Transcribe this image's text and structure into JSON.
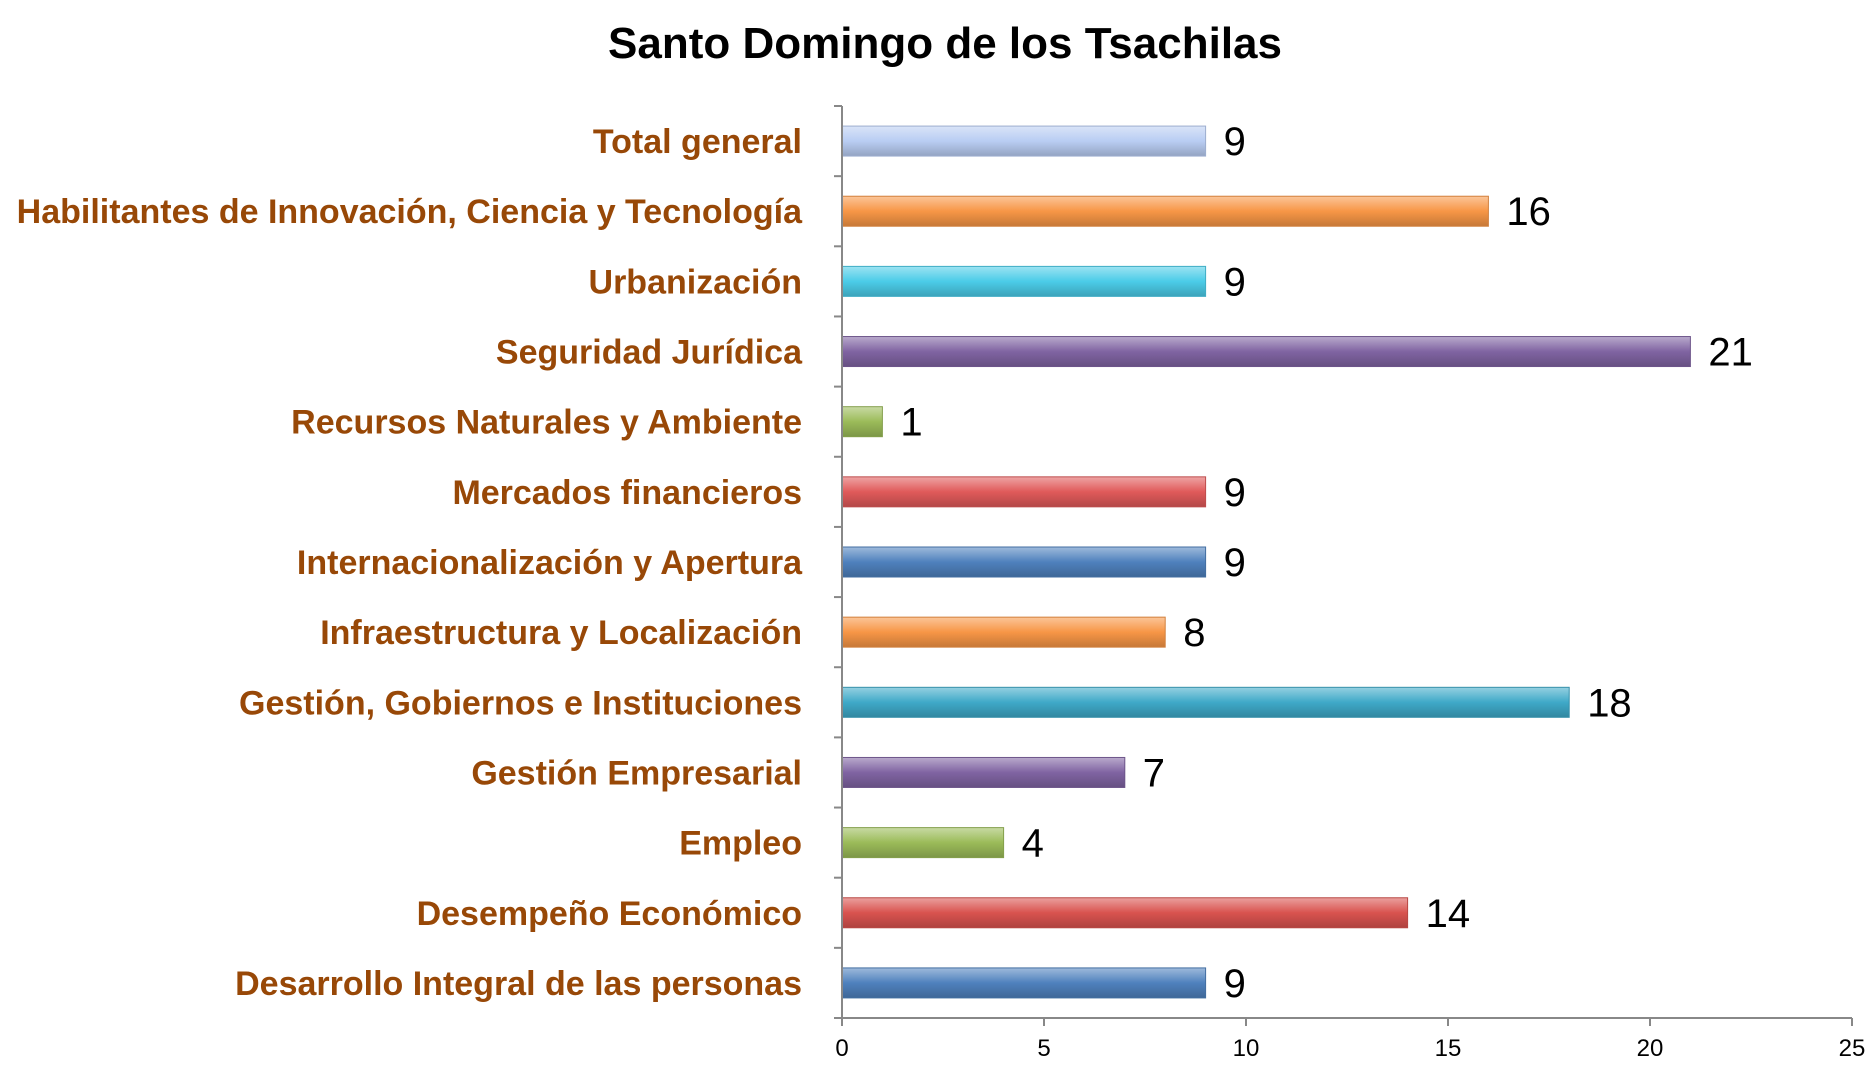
{
  "chart_data": {
    "type": "bar",
    "orientation": "horizontal",
    "title": "Santo Domingo de los Tsachilas",
    "xlabel": "",
    "ylabel": "",
    "xlim": [
      0,
      25
    ],
    "x_ticks": [
      0,
      5,
      10,
      15,
      20,
      25
    ],
    "grid": false,
    "legend": "none",
    "label_color": "#984807",
    "categories": [
      "Total general",
      "Habilitantes de Innovación, Ciencia y Tecnología",
      "Urbanización",
      "Seguridad Jurídica",
      "Recursos Naturales y Ambiente",
      "Mercados financieros",
      "Internacionalización y Apertura",
      "Infraestructura y Localización",
      "Gestión, Gobiernos e Instituciones",
      "Gestión Empresarial",
      "Empleo",
      "Desempeño Económico",
      "Desarrollo Integral de las personas"
    ],
    "values": [
      9,
      16,
      9,
      21,
      1,
      9,
      9,
      8,
      18,
      7,
      4,
      14,
      9
    ],
    "colors": [
      "#b9cdf3",
      "#f79646",
      "#4bcce8",
      "#8064a2",
      "#9bbb59",
      "#e05a5a",
      "#4f81bd",
      "#f79646",
      "#3fa9c8",
      "#8064a2",
      "#9bbb59",
      "#d9534f",
      "#4f81bd"
    ]
  }
}
